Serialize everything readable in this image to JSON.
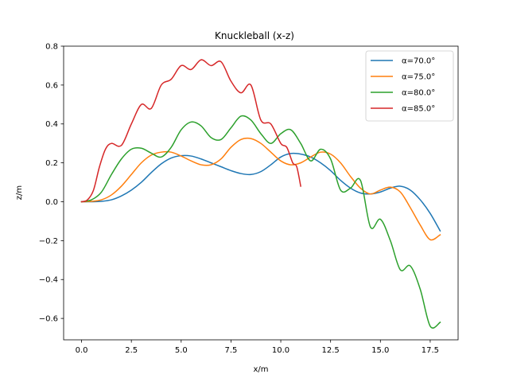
{
  "chart_data": {
    "type": "line",
    "title": "Knuckleball (x-z)",
    "xlabel": "x/m",
    "ylabel": "z/m",
    "xlim": [
      -0.9,
      18.9
    ],
    "ylim": [
      -0.71,
      0.8
    ],
    "xticks": [
      "0.0",
      "2.5",
      "5.0",
      "7.5",
      "10.0",
      "12.5",
      "15.0",
      "17.5"
    ],
    "xtick_values": [
      0,
      2.5,
      5,
      7.5,
      10,
      12.5,
      15,
      17.5
    ],
    "yticks": [
      "−0.6",
      "−0.4",
      "−0.2",
      "0.0",
      "0.2",
      "0.4",
      "0.6",
      "0.8"
    ],
    "ytick_values": [
      -0.6,
      -0.4,
      -0.2,
      0,
      0.2,
      0.4,
      0.6,
      0.8
    ],
    "grid": false,
    "legend_position": "top-right",
    "series": [
      {
        "name": "α=70.0°",
        "color": "#1f77b4",
        "x": [
          0,
          0.5,
          1,
          1.5,
          2,
          2.5,
          3,
          3.5,
          4,
          4.5,
          5,
          5.5,
          6,
          6.5,
          7,
          7.5,
          8,
          8.5,
          9,
          9.5,
          10,
          10.5,
          11,
          11.5,
          12,
          12.5,
          13,
          13.5,
          14,
          14.5,
          15,
          15.5,
          16,
          16.5,
          17,
          17.5,
          18
        ],
        "y": [
          0,
          0.0,
          0.002,
          0.01,
          0.03,
          0.06,
          0.1,
          0.15,
          0.195,
          0.225,
          0.237,
          0.235,
          0.22,
          0.2,
          0.18,
          0.16,
          0.145,
          0.14,
          0.155,
          0.19,
          0.23,
          0.248,
          0.245,
          0.23,
          0.2,
          0.16,
          0.11,
          0.07,
          0.045,
          0.04,
          0.05,
          0.07,
          0.08,
          0.06,
          0.01,
          -0.06,
          -0.15
        ]
      },
      {
        "name": "α=75.0°",
        "color": "#ff7f0e",
        "x": [
          0,
          0.5,
          1,
          1.5,
          2,
          2.5,
          3,
          3.5,
          4,
          4.5,
          5,
          5.5,
          6,
          6.5,
          7,
          7.5,
          8,
          8.5,
          9,
          9.5,
          10,
          10.5,
          11,
          11.5,
          12,
          12.5,
          13,
          13.5,
          14,
          14.5,
          15,
          15.5,
          16,
          16.5,
          17,
          17.5,
          18
        ],
        "y": [
          0,
          0.002,
          0.01,
          0.035,
          0.08,
          0.14,
          0.2,
          0.24,
          0.255,
          0.255,
          0.235,
          0.21,
          0.19,
          0.19,
          0.22,
          0.28,
          0.32,
          0.325,
          0.3,
          0.255,
          0.21,
          0.19,
          0.2,
          0.23,
          0.255,
          0.245,
          0.2,
          0.13,
          0.07,
          0.04,
          0.06,
          0.075,
          0.05,
          -0.03,
          -0.12,
          -0.195,
          -0.17
        ]
      },
      {
        "name": "α=80.0°",
        "color": "#2ca02c",
        "x": [
          0,
          0.5,
          1,
          1.5,
          2,
          2.5,
          3,
          3.5,
          4,
          4.5,
          5,
          5.5,
          6,
          6.5,
          7,
          7.5,
          8,
          8.5,
          9,
          9.5,
          10,
          10.5,
          11,
          11.5,
          12,
          12.5,
          13,
          13.5,
          14,
          14.5,
          15,
          15.5,
          16,
          16.5,
          17,
          17.5,
          18
        ],
        "y": [
          0,
          0.01,
          0.05,
          0.14,
          0.22,
          0.27,
          0.275,
          0.25,
          0.23,
          0.28,
          0.37,
          0.41,
          0.39,
          0.33,
          0.32,
          0.38,
          0.44,
          0.42,
          0.35,
          0.3,
          0.35,
          0.37,
          0.3,
          0.21,
          0.27,
          0.22,
          0.06,
          0.07,
          0.11,
          -0.13,
          -0.09,
          -0.2,
          -0.35,
          -0.33,
          -0.45,
          -0.64,
          -0.62
        ]
      },
      {
        "name": "α=85.0°",
        "color": "#d62728",
        "x": [
          0,
          0.3,
          0.6,
          0.9,
          1.2,
          1.5,
          2.0,
          2.5,
          3.0,
          3.5,
          4.0,
          4.5,
          5.0,
          5.5,
          6.0,
          6.5,
          7.0,
          7.5,
          8.0,
          8.5,
          9.0,
          9.5,
          10.0,
          10.3,
          10.6,
          10.8,
          11.0
        ],
        "y": [
          0,
          0.01,
          0.06,
          0.18,
          0.27,
          0.3,
          0.29,
          0.4,
          0.5,
          0.48,
          0.6,
          0.63,
          0.7,
          0.68,
          0.73,
          0.7,
          0.72,
          0.62,
          0.56,
          0.6,
          0.42,
          0.4,
          0.3,
          0.28,
          0.2,
          0.18,
          0.08
        ]
      }
    ]
  }
}
